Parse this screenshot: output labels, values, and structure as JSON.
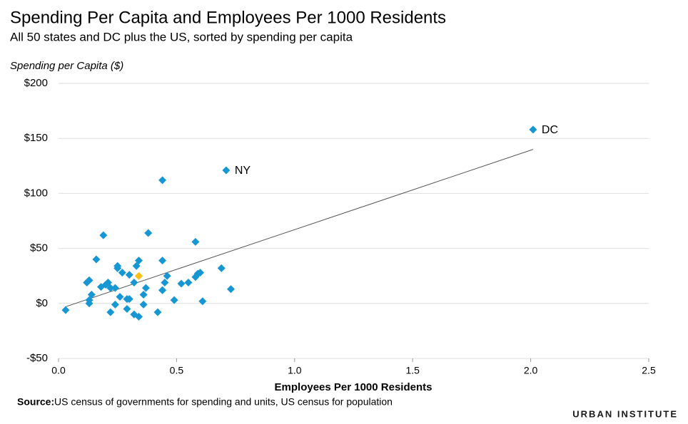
{
  "chart_data": {
    "type": "scatter",
    "title": "Spending Per Capita and Employees Per 1000 Residents",
    "subtitle": "All 50 states and DC plus the US, sorted by spending per capita",
    "y_label": "Spending per Capita ($)",
    "x_label": "Employees Per 1000 Residents",
    "source_label": "Source:",
    "source": "US census of governments for spending and units, US census for population",
    "brand": "URBAN INSTITUTE",
    "xlim": [
      0,
      2.5
    ],
    "ylim": [
      -50,
      200
    ],
    "xticks": [
      {
        "value": 0,
        "label": "0.0"
      },
      {
        "value": 0.5,
        "label": "0.5"
      },
      {
        "value": 1,
        "label": "1.0"
      },
      {
        "value": 1.5,
        "label": "1.5"
      },
      {
        "value": 2,
        "label": "2.0"
      },
      {
        "value": 2.5,
        "label": "2.5"
      }
    ],
    "yticks": [
      {
        "value": -50,
        "label": "-$50"
      },
      {
        "value": 0,
        "label": "$0"
      },
      {
        "value": 50,
        "label": "$50"
      },
      {
        "value": 100,
        "label": "$100"
      },
      {
        "value": 150,
        "label": "$150"
      },
      {
        "value": 200,
        "label": "$200"
      }
    ],
    "grid": true,
    "series": [
      {
        "color": "#1696d2",
        "x": [
          0.03,
          0.12,
          0.13,
          0.13,
          0.13,
          0.14,
          0.16,
          0.18,
          0.19,
          0.2,
          0.21,
          0.22,
          0.22,
          0.24,
          0.24,
          0.25,
          0.25,
          0.26,
          0.27,
          0.29,
          0.29,
          0.3,
          0.3,
          0.32,
          0.32,
          0.33,
          0.34,
          0.34,
          0.36,
          0.36,
          0.37,
          0.38,
          0.42,
          0.44,
          0.44,
          0.44,
          0.44,
          0.45,
          0.46,
          0.49,
          0.52,
          0.55,
          0.58,
          0.58,
          0.59,
          0.6,
          0.61,
          0.69,
          0.71,
          0.73,
          2.01
        ],
        "values": [
          -6,
          19,
          21,
          3,
          0,
          8,
          40,
          15,
          62,
          17,
          19,
          14,
          -8,
          14,
          -1,
          32,
          34,
          6,
          28,
          4,
          -5,
          4,
          26,
          19,
          -10,
          34,
          -12,
          39,
          8,
          -1,
          14,
          64,
          -8,
          12,
          112,
          39,
          12,
          19,
          25,
          3,
          18,
          19,
          56,
          24,
          27,
          28,
          2,
          32,
          121,
          13,
          158
        ]
      },
      {
        "color": "#fdbf11",
        "x": [
          0.34
        ],
        "values": [
          25
        ]
      }
    ],
    "annotations": [
      {
        "text": "NY",
        "series": 0,
        "point": 48
      },
      {
        "text": "DC",
        "series": 0,
        "point": 50
      }
    ],
    "trendline": {
      "color": "#555555",
      "x": [
        0.03,
        2.01
      ],
      "y": [
        -3,
        140
      ]
    }
  }
}
